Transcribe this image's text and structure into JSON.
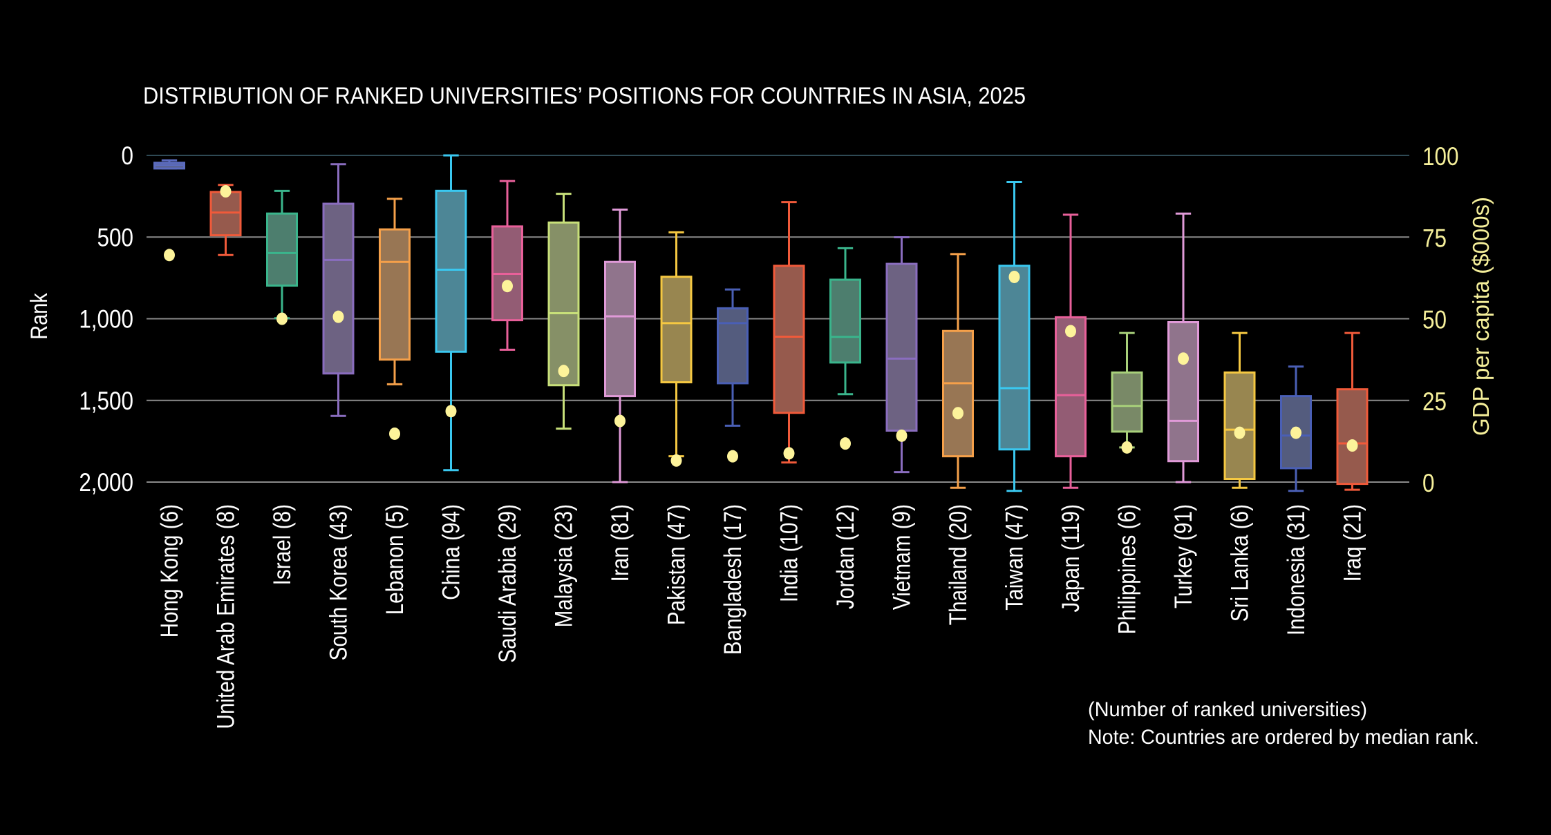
{
  "chart_data": {
    "type": "boxplot",
    "title": "DISTRIBUTION OF RANKED UNIVERSITIES’ POSITIONS FOR COUNTRIES IN ASIA, 2025",
    "ylabel": "Rank",
    "y2label": "GDP per capita ($000s)",
    "ylim": [
      0,
      2000
    ],
    "y_inverted": true,
    "y2lim": [
      0,
      100
    ],
    "yticks": [
      0,
      500,
      1000,
      1500,
      2000
    ],
    "ytick_labels": [
      "0",
      "500",
      "1,000",
      "1,500",
      "2,000"
    ],
    "y2ticks": [
      0,
      25,
      50,
      75,
      100
    ],
    "y2tick_labels": [
      "0",
      "25",
      "50",
      "75",
      "100"
    ],
    "grid": true,
    "notes": [
      "(Number of ranked universities)",
      "Note: Countries are ordered by median rank."
    ],
    "colors": {
      "background": "#000000",
      "gdp_dot": "#fdf39a",
      "y2_axis": "#f5ef9a",
      "grid": "#8a8a8a",
      "grid_top": "#2f4a55"
    },
    "categories": [
      "Hong Kong (6)",
      "United Arab Emirates (8)",
      "Israel (8)",
      "South Korea (43)",
      "Lebanon (5)",
      "China (94)",
      "Saudi Arabia (29)",
      "Malaysia (23)",
      "Iran (81)",
      "Pakistan (47)",
      "Bangladesh (17)",
      "India (107)",
      "Jordan (12)",
      "Vietnam (9)",
      "Thailand (20)",
      "Taiwan (47)",
      "Japan (119)",
      "Philippines (6)",
      "Turkey (91)",
      "Sri Lanka (6)",
      "Indonesia (31)",
      "Iraq (21)"
    ],
    "boxes": [
      {
        "min": 30,
        "q1": 45,
        "median": 60,
        "q3": 80,
        "max": 80,
        "color": "#5b6bbf"
      },
      {
        "min": 181,
        "q1": 224,
        "median": 350,
        "q3": 489,
        "max": 610,
        "color": "#f05a3a"
      },
      {
        "min": 217,
        "q1": 356,
        "median": 598,
        "q3": 797,
        "max": 997,
        "color": "#3ab58c"
      },
      {
        "min": 54,
        "q1": 296,
        "median": 640,
        "q3": 1335,
        "max": 1595,
        "color": "#8a6dbf"
      },
      {
        "min": 266,
        "q1": 453,
        "median": 652,
        "q3": 1250,
        "max": 1401,
        "color": "#f5a04a"
      },
      {
        "min": 0,
        "q1": 217,
        "median": 700,
        "q3": 1202,
        "max": 1927,
        "color": "#3ac8f0"
      },
      {
        "min": 157,
        "q1": 435,
        "median": 725,
        "q3": 1009,
        "max": 1190,
        "color": "#e8609a"
      },
      {
        "min": 235,
        "q1": 411,
        "median": 966,
        "q3": 1407,
        "max": 1673,
        "color": "#c8e07a"
      },
      {
        "min": 332,
        "q1": 652,
        "median": 985,
        "q3": 1474,
        "max": 2000,
        "color": "#e09ad8"
      },
      {
        "min": 471,
        "q1": 743,
        "median": 1027,
        "q3": 1389,
        "max": 1842,
        "color": "#f5c842"
      },
      {
        "min": 821,
        "q1": 936,
        "median": 1027,
        "q3": 1395,
        "max": 1655,
        "color": "#4a5fb5"
      },
      {
        "min": 286,
        "q1": 676,
        "median": 1110,
        "q3": 1576,
        "max": 1880,
        "color": "#f05a3a"
      },
      {
        "min": 568,
        "q1": 761,
        "median": 1111,
        "q3": 1268,
        "max": 1462,
        "color": "#3ab58c"
      },
      {
        "min": 501,
        "q1": 664,
        "median": 1244,
        "q3": 1685,
        "max": 1939,
        "color": "#8a6dbf"
      },
      {
        "min": 604,
        "q1": 1075,
        "median": 1395,
        "q3": 1842,
        "max": 2035,
        "color": "#f5a04a"
      },
      {
        "min": 163,
        "q1": 676,
        "median": 1425,
        "q3": 1800,
        "max": 2054,
        "color": "#3ac8f0"
      },
      {
        "min": 363,
        "q1": 991,
        "median": 1468,
        "q3": 1842,
        "max": 2035,
        "color": "#e8609a"
      },
      {
        "min": 1087,
        "q1": 1329,
        "median": 1534,
        "q3": 1691,
        "max": 1788,
        "color": "#a8d07a"
      },
      {
        "min": 356,
        "q1": 1021,
        "median": 1625,
        "q3": 1872,
        "max": 2000,
        "color": "#e09ad8"
      },
      {
        "min": 1087,
        "q1": 1329,
        "median": 1679,
        "q3": 1981,
        "max": 2035,
        "color": "#f5c842"
      },
      {
        "min": 1293,
        "q1": 1474,
        "median": 1715,
        "q3": 1915,
        "max": 2054,
        "color": "#4a5fb5"
      },
      {
        "min": 1087,
        "q1": 1432,
        "median": 1763,
        "q3": 2011,
        "max": 2047,
        "color": "#f05a3a"
      }
    ],
    "gdp_per_capita": [
      69.5,
      89,
      50,
      50.6,
      14.8,
      21.7,
      60,
      34,
      18.7,
      6.6,
      7.9,
      8.8,
      11.8,
      14.2,
      21.1,
      62.8,
      46.2,
      10.6,
      37.8,
      15.1,
      15.1,
      11.2
    ]
  }
}
